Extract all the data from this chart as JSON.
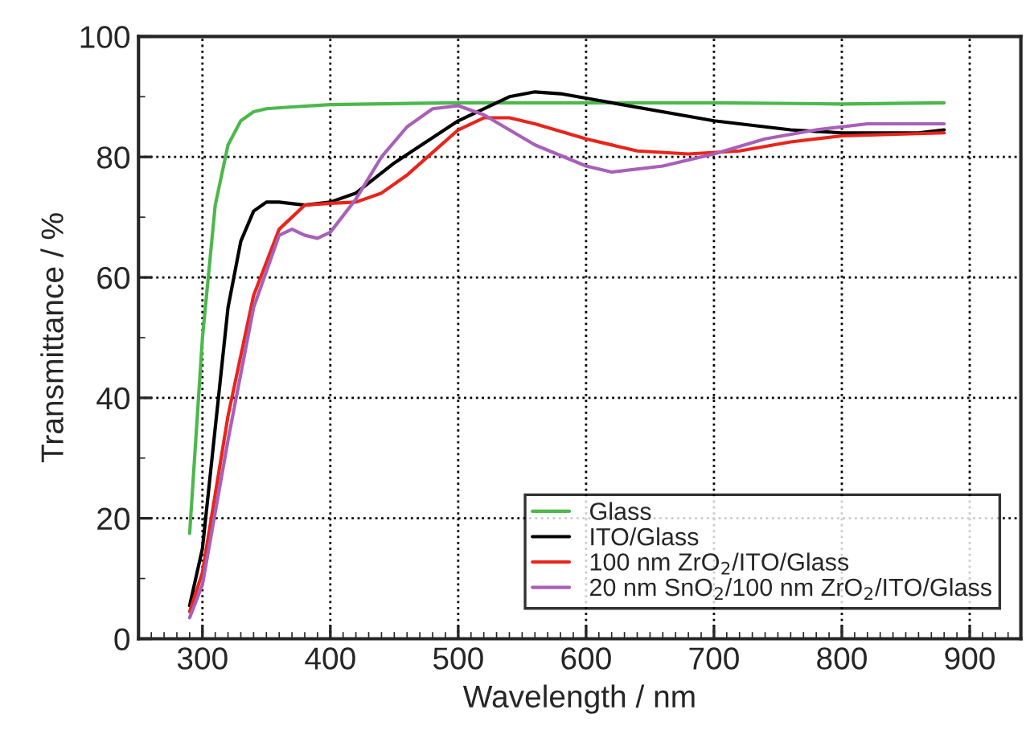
{
  "chart_data": {
    "type": "line",
    "xlabel": "Wavelength / nm",
    "ylabel": "Transmittance / %",
    "xlim": [
      250,
      940
    ],
    "ylim": [
      0,
      100
    ],
    "xticks": [
      300,
      400,
      500,
      600,
      700,
      800,
      900
    ],
    "yticks": [
      0,
      20,
      40,
      60,
      80,
      100
    ],
    "grid": true,
    "legend": "bottom right",
    "line_style": "solid",
    "marker": "none",
    "series": [
      {
        "name": "Glass",
        "color": "#4cb84c",
        "x": [
          290,
          300,
          310,
          320,
          330,
          340,
          350,
          370,
          400,
          500,
          600,
          700,
          800,
          880
        ],
        "values": [
          17.5,
          50,
          72,
          82,
          86,
          87.5,
          88,
          88.3,
          88.7,
          89,
          89,
          89,
          88.8,
          89
        ]
      },
      {
        "name": "ITO/Glass",
        "color": "#000000",
        "x": [
          290,
          300,
          310,
          320,
          330,
          340,
          350,
          360,
          380,
          400,
          420,
          450,
          500,
          540,
          560,
          580,
          620,
          700,
          760,
          800,
          860,
          880
        ],
        "values": [
          5.5,
          15,
          35,
          55,
          66,
          71,
          72.5,
          72.5,
          72,
          72.5,
          74,
          79,
          86,
          90,
          90.8,
          90.5,
          89,
          86,
          84.5,
          84,
          84,
          84.5
        ]
      },
      {
        "name": "100 nm ZrO$_{2}$/ITO/Glass",
        "color": "#e8251c",
        "x": [
          290,
          300,
          320,
          340,
          360,
          380,
          400,
          420,
          440,
          460,
          500,
          520,
          540,
          560,
          600,
          640,
          680,
          720,
          760,
          800,
          880
        ],
        "values": [
          4.5,
          11,
          37,
          57,
          68,
          72,
          72.3,
          72.5,
          74,
          77,
          84.5,
          86.5,
          86.5,
          85.5,
          83,
          81,
          80.5,
          81,
          82.5,
          83.5,
          84
        ]
      },
      {
        "name": "20 nm SnO$_{2}$/100 nm ZrO$_{2}$/ITO/Glass",
        "color": "#a860b8",
        "x": [
          290,
          300,
          320,
          340,
          360,
          370,
          380,
          390,
          400,
          420,
          440,
          460,
          480,
          500,
          520,
          560,
          600,
          620,
          660,
          700,
          740,
          780,
          820,
          880
        ],
        "values": [
          3.5,
          9,
          33,
          55,
          67,
          68,
          67,
          66.5,
          67.5,
          73,
          80,
          85,
          88,
          88.5,
          87,
          82,
          78.5,
          77.5,
          78.5,
          80.5,
          83,
          84.5,
          85.5,
          85.5
        ]
      }
    ]
  }
}
